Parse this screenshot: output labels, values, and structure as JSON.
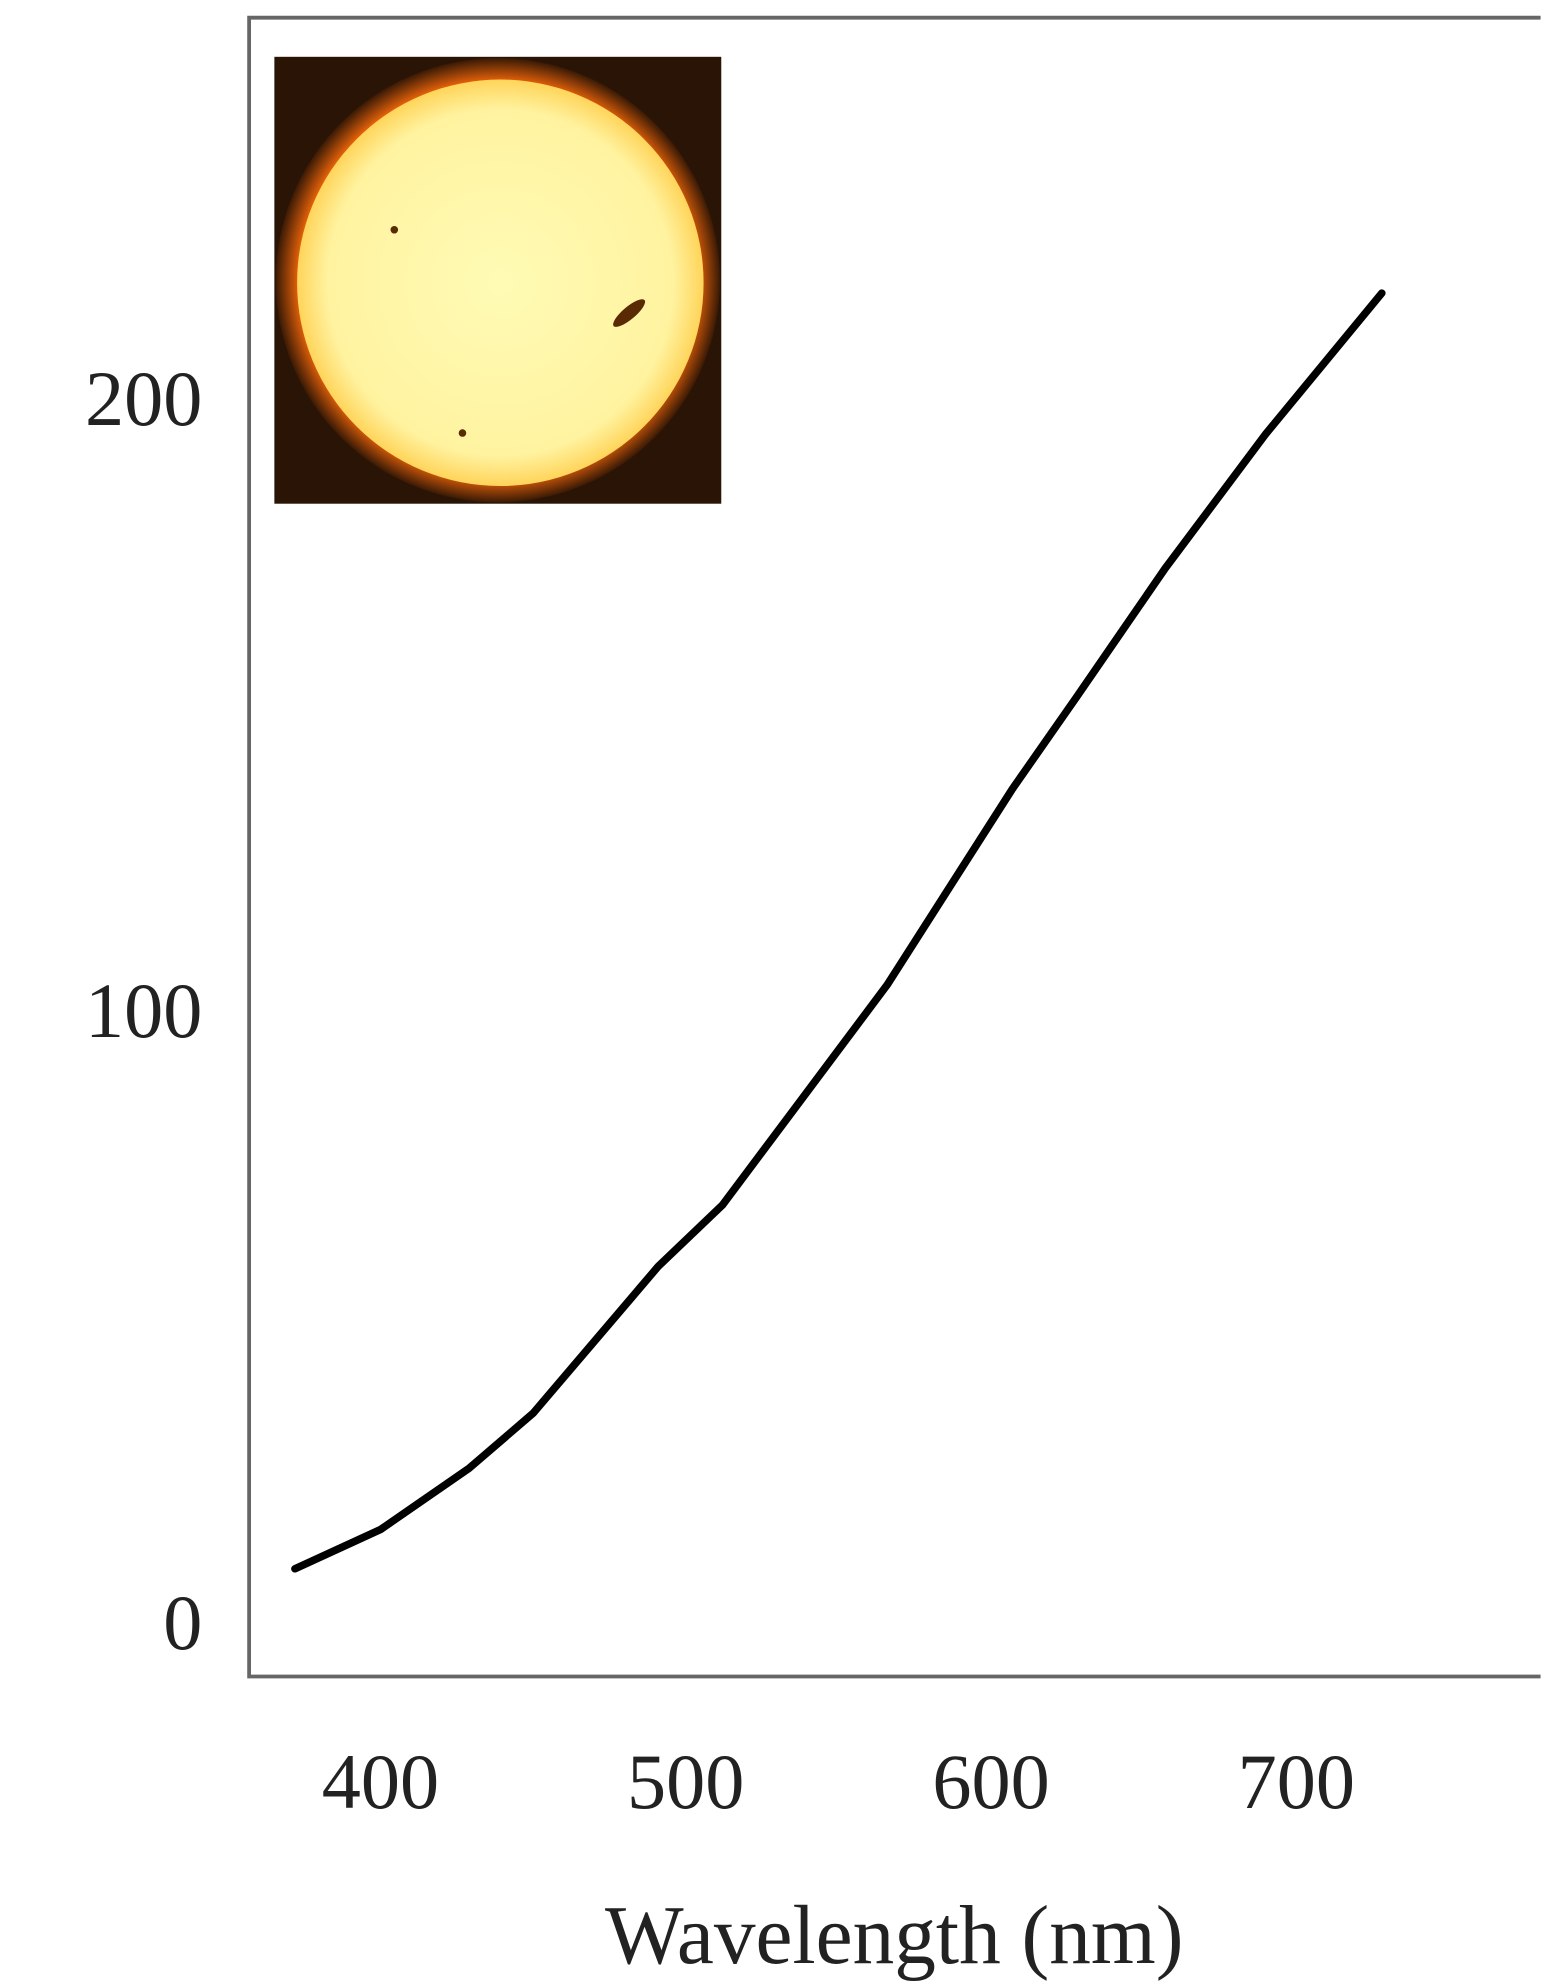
{
  "chart_data": {
    "type": "line",
    "x_label": "Wavelength (nm)",
    "xlim": [
      357,
      780
    ],
    "xticks": [
      400,
      500,
      600,
      700
    ],
    "ylim": [
      -9,
      262
    ],
    "yticks": [
      0,
      100,
      200
    ],
    "grid": false,
    "series": [
      {
        "color": "#000000",
        "x": [
          372,
          400,
          429,
          450,
          491,
          512,
          533,
          566,
          607,
          628,
          657,
          690,
          728
        ],
        "values": [
          8.6,
          15,
          25,
          34,
          58,
          68,
          82,
          104,
          136,
          151,
          172,
          194,
          217
        ]
      }
    ]
  }
}
